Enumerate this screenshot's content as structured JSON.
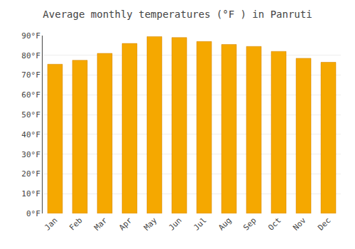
{
  "chart_data": {
    "type": "bar",
    "title": "Average monthly temperatures (°F ) in Panruti",
    "categories": [
      "Jan",
      "Feb",
      "Mar",
      "Apr",
      "May",
      "Jun",
      "Jul",
      "Aug",
      "Sep",
      "Oct",
      "Nov",
      "Dec"
    ],
    "values": [
      75.5,
      77.5,
      81.0,
      86.0,
      89.5,
      89.0,
      87.0,
      85.5,
      84.5,
      82.0,
      78.5,
      76.5
    ],
    "color": "#F5A800",
    "ylim": [
      0,
      90
    ],
    "yticks": [
      {
        "value": 0,
        "label": "0°F"
      },
      {
        "value": 10,
        "label": "10°F"
      },
      {
        "value": 20,
        "label": "20°F"
      },
      {
        "value": 30,
        "label": "30°F"
      },
      {
        "value": 40,
        "label": "40°F"
      },
      {
        "value": 50,
        "label": "50°F"
      },
      {
        "value": 60,
        "label": "60°F"
      },
      {
        "value": 70,
        "label": "70°F"
      },
      {
        "value": 80,
        "label": "80°F"
      },
      {
        "value": 90,
        "label": "90°F"
      }
    ],
    "grid": true
  }
}
